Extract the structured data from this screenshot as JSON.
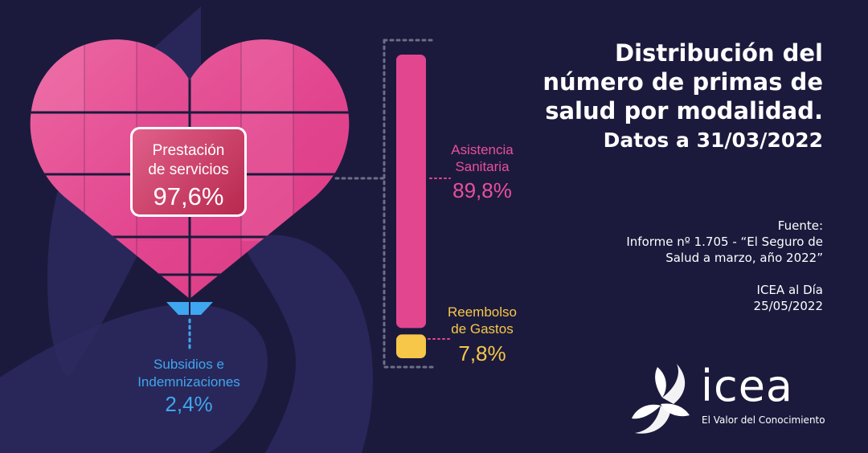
{
  "title": {
    "line1": "Distribución del",
    "line2": "número de primas de",
    "line3": "salud por modalidad.",
    "subtitle": "Datos a 31/03/2022"
  },
  "source": {
    "label": "Fuente:",
    "line1": "Informe nº 1.705 - “El Seguro de",
    "line2": "Salud a marzo, año 2022”",
    "line3": "ICEA al Día",
    "line4": "25/05/2022"
  },
  "chart_data": {
    "type": "bar",
    "categories": [
      "Prestación de servicios",
      "Asistencia Sanitaria",
      "Reembolso de Gastos",
      "Subsidios e Indemnizaciones"
    ],
    "values": [
      97.6,
      89.8,
      7.8,
      2.4
    ],
    "value_labels": [
      "97,6%",
      "89,8%",
      "7,8%",
      "2,4%"
    ],
    "labels": {
      "prestacion": [
        "Prestación",
        "de servicios"
      ],
      "asistencia": [
        "Asistencia",
        "Sanitaria"
      ],
      "reembolso": [
        "Reembolso",
        "de Gastos"
      ],
      "subsidios": [
        "Subsidios e",
        "Indemnizaciones"
      ]
    },
    "stack": {
      "parent": "Prestación de servicios",
      "parts": [
        {
          "name": "Asistencia Sanitaria",
          "value": 89.8
        },
        {
          "name": "Reembolso de Gastos",
          "value": 7.8
        }
      ]
    },
    "colors": {
      "prestacion": "#e0428a",
      "asistencia": "#e2468f",
      "reembolso": "#f6c748",
      "subsidios": "#3fa6f0"
    }
  },
  "logo": {
    "word": "icea",
    "tagline": "El Valor del Conocimiento",
    "icon": "triskelion-logo-icon"
  },
  "colors": {
    "background": "#1b1a3d",
    "text": "#ffffff"
  }
}
